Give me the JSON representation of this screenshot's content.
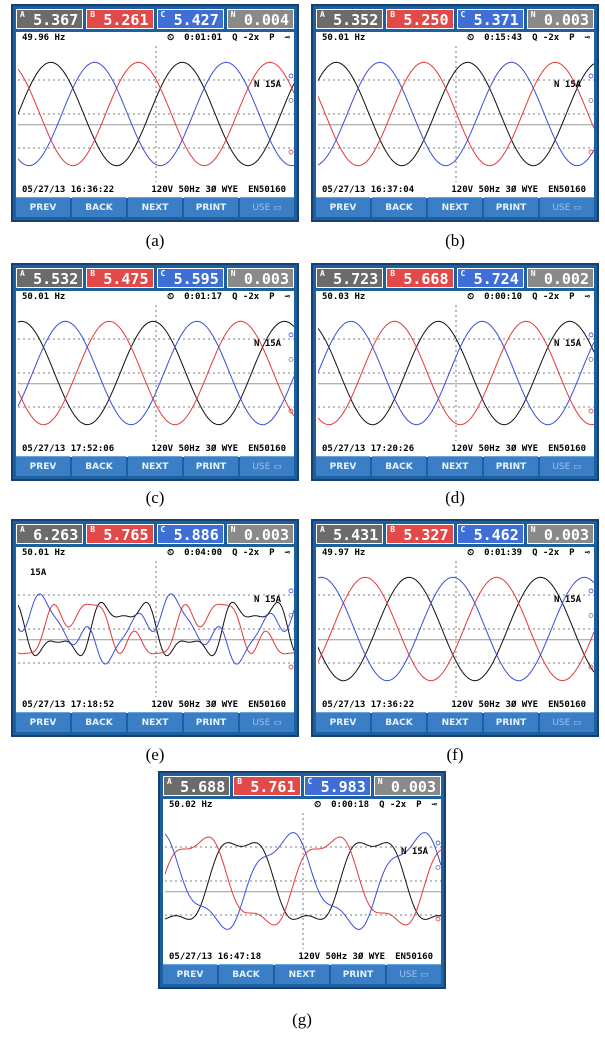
{
  "colors": {
    "phase_a": "#111111",
    "phase_b": "#e23a3a",
    "phase_c": "#3a4fd8",
    "phase_n": "#7c7c7c",
    "header_bg": "#1e5fa0",
    "fkey_bg": "#3a7fc6"
  },
  "fkeys": [
    "PREV",
    "BACK",
    "NEXT",
    "PRINT",
    "USE"
  ],
  "phase_labels": [
    "A",
    "B",
    "C",
    "N"
  ],
  "config": "120V  50Hz 3Ø WYE",
  "standard": "EN50160",
  "zoom": "Q -2x",
  "mode": "P",
  "scale_label": "N  15A",
  "scale_label_left": "15A",
  "panels": [
    {
      "caption": "(a)",
      "readings": [
        "5.367 A",
        "5.261 A",
        "5.427 A",
        "0.004 A"
      ],
      "freq": "49.96 Hz",
      "elapsed": "0:01:01",
      "datetime": "05/27/13  16:36:22"
    },
    {
      "caption": "(b)",
      "readings": [
        "5.352 A",
        "5.250 A",
        "5.371 A",
        "0.003 A"
      ],
      "freq": "50.01 Hz",
      "elapsed": "0:15:43",
      "datetime": "05/27/13  16:37:04"
    },
    {
      "caption": "(c)",
      "readings": [
        "5.532 A",
        "5.475 A",
        "5.595 A",
        "0.003 A"
      ],
      "freq": "50.01 Hz",
      "elapsed": "0:01:17",
      "datetime": "05/27/13  17:52:06"
    },
    {
      "caption": "(d)",
      "readings": [
        "5.723 A",
        "5.668 A",
        "5.724 A",
        "0.002 A"
      ],
      "freq": "50.03 Hz",
      "elapsed": "0:00:10",
      "datetime": "05/27/13  17:20:26"
    },
    {
      "caption": "(e)",
      "readings": [
        "6.263 A",
        "5.765 A",
        "5.886 A",
        "0.003 A"
      ],
      "freq": "50.01 Hz",
      "elapsed": "0:04:00",
      "datetime": "05/27/13  17:18:52"
    },
    {
      "caption": "(f)",
      "readings": [
        "5.431 A",
        "5.327 A",
        "5.462 A",
        "0.003 A"
      ],
      "freq": "49.97 Hz",
      "elapsed": "0:01:39",
      "datetime": "05/27/13  17:36:22"
    },
    {
      "caption": "(g)",
      "readings": [
        "5.688 A",
        "5.761 A",
        "5.983 A",
        "0.003 A"
      ],
      "freq": "50.02 Hz",
      "elapsed": "0:00:18",
      "datetime": "05/27/13  16:47:18"
    }
  ]
}
